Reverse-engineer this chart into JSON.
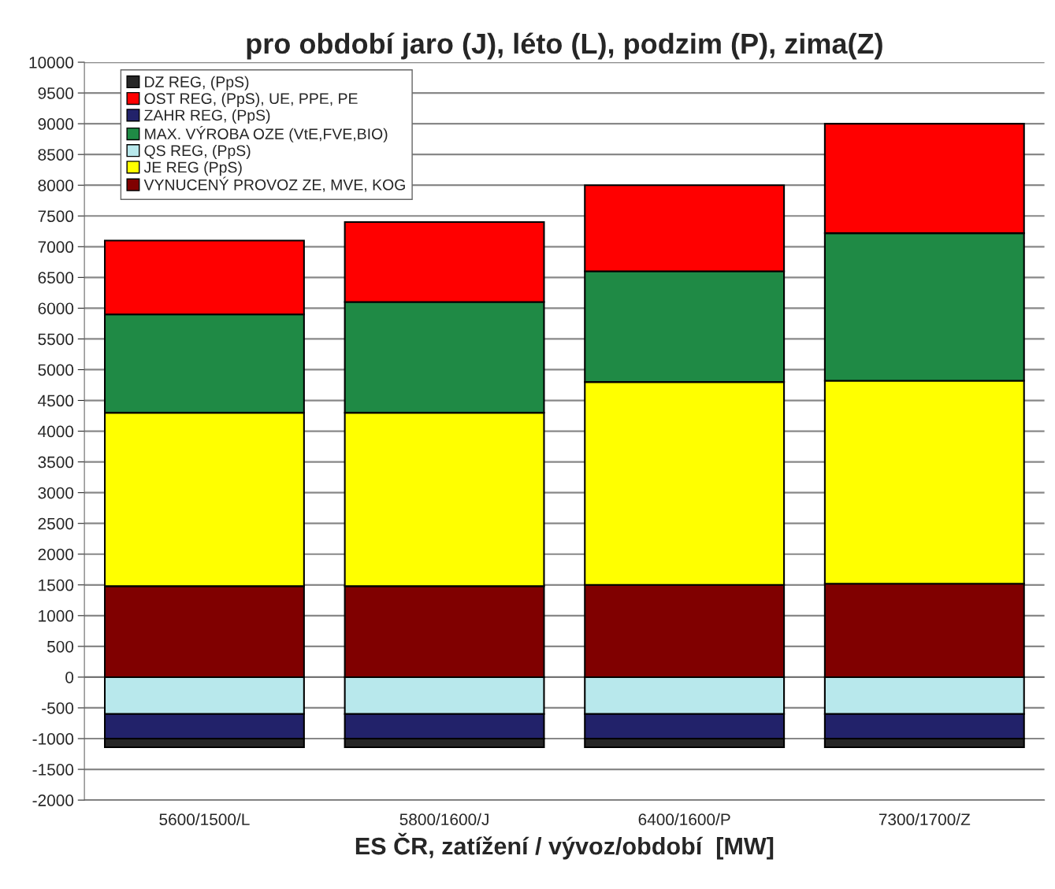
{
  "chart_data": {
    "type": "bar",
    "title": "pro období jaro (J), léto (L), podzim (P), zima(Z)",
    "xlabel": "ES ČR, zatížení / vývoz/období  [MW]",
    "categories": [
      "5600/1500/L",
      "5800/1600/J",
      "6400/1600/P",
      "7300/1700/Z"
    ],
    "stacked": true,
    "ylim": [
      -2000,
      10000
    ],
    "yticks": [
      -2000,
      -1500,
      -1000,
      -500,
      0,
      500,
      1000,
      1500,
      2000,
      2500,
      3000,
      3500,
      4000,
      4500,
      5000,
      5500,
      6000,
      6500,
      7000,
      7500,
      8000,
      8500,
      9000,
      9500,
      10000
    ],
    "grid": "y",
    "legend": "top left",
    "series": [
      {
        "name": "VYNUCENÝ PROVOZ ZE, MVE, KOG",
        "color": "#800000",
        "values": [
          1480,
          1480,
          1500,
          1520
        ]
      },
      {
        "name": "JE REG (PpS)",
        "color": "#ffff00",
        "values": [
          2820,
          2820,
          3300,
          3300
        ]
      },
      {
        "name": "QS REG, (PpS)",
        "color": "#b8e8ec",
        "values": [
          -600,
          -600,
          -600,
          -600
        ]
      },
      {
        "name": "MAX. VÝROBA OZE (VtE,FVE,BIO)",
        "color": "#1f8a45",
        "values": [
          1600,
          1800,
          1800,
          2400
        ]
      },
      {
        "name": "ZAHR REG, (PpS)",
        "color": "#22226a",
        "values": [
          -400,
          -400,
          -400,
          -400
        ]
      },
      {
        "name": "OST REG, (PpS), UE, PPE, PE",
        "color": "#ff0000",
        "values": [
          1200,
          1300,
          1400,
          1780
        ]
      },
      {
        "name": "DZ REG, (PpS)",
        "color": "#262626",
        "values": [
          -140,
          -140,
          -140,
          -140
        ]
      }
    ]
  }
}
